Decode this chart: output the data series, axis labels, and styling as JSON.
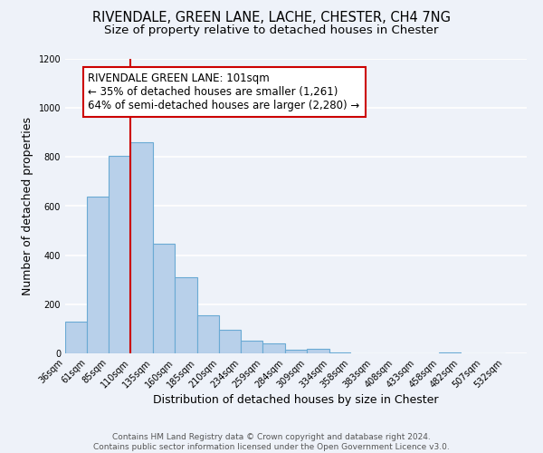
{
  "title": "RIVENDALE, GREEN LANE, LACHE, CHESTER, CH4 7NG",
  "subtitle": "Size of property relative to detached houses in Chester",
  "xlabel": "Distribution of detached houses by size in Chester",
  "ylabel": "Number of detached properties",
  "bar_values": [
    130,
    640,
    805,
    860,
    445,
    310,
    155,
    95,
    50,
    40,
    15,
    20,
    5,
    0,
    0,
    0,
    0,
    5,
    0,
    0
  ],
  "bin_labels": [
    "36sqm",
    "61sqm",
    "85sqm",
    "110sqm",
    "135sqm",
    "160sqm",
    "185sqm",
    "210sqm",
    "234sqm",
    "259sqm",
    "284sqm",
    "309sqm",
    "334sqm",
    "358sqm",
    "383sqm",
    "408sqm",
    "433sqm",
    "458sqm",
    "482sqm",
    "507sqm",
    "532sqm"
  ],
  "bar_color": "#b8d0ea",
  "bar_edge_color": "#6aaad4",
  "vline_x": 110,
  "vline_color": "#cc0000",
  "annotation_line1": "RIVENDALE GREEN LANE: 101sqm",
  "annotation_line2": "← 35% of detached houses are smaller (1,261)",
  "annotation_line3": "64% of semi-detached houses are larger (2,280) →",
  "annotation_box_color": "white",
  "annotation_box_edge": "#cc0000",
  "ylim": [
    0,
    1200
  ],
  "yticks": [
    0,
    200,
    400,
    600,
    800,
    1000,
    1200
  ],
  "bin_edges": [
    36,
    61,
    85,
    110,
    135,
    160,
    185,
    210,
    234,
    259,
    284,
    309,
    334,
    358,
    383,
    408,
    433,
    458,
    482,
    507,
    532
  ],
  "footer_text": "Contains HM Land Registry data © Crown copyright and database right 2024.\nContains public sector information licensed under the Open Government Licence v3.0.",
  "bg_color": "#eef2f9",
  "grid_color": "white",
  "title_fontsize": 10.5,
  "subtitle_fontsize": 9.5,
  "axis_label_fontsize": 9,
  "tick_fontsize": 7,
  "footer_fontsize": 6.5,
  "annotation_fontsize": 8.5
}
